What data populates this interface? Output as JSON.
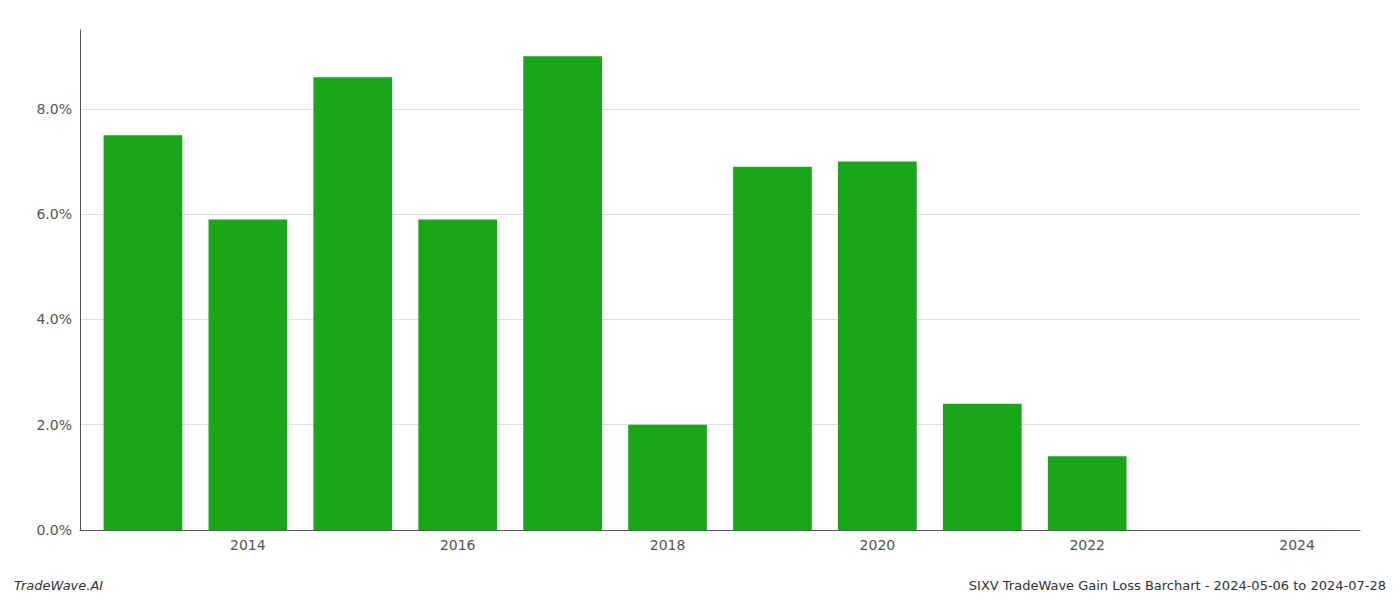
{
  "chart_data": {
    "type": "bar",
    "x": [
      2013,
      2014,
      2015,
      2016,
      2017,
      2018,
      2019,
      2020,
      2021,
      2022,
      2023
    ],
    "values": [
      0.075,
      0.059,
      0.086,
      0.059,
      0.09,
      0.02,
      0.069,
      0.07,
      0.024,
      0.014,
      0.0
    ],
    "color": "#1aa619",
    "xlim": [
      2012.4,
      2024.6
    ],
    "xticks": [
      2014,
      2016,
      2018,
      2020,
      2022,
      2024
    ],
    "ylim": [
      0,
      0.095
    ],
    "yticks": [
      {
        "value": 0.0,
        "label": "0.0%"
      },
      {
        "value": 0.02,
        "label": "2.0%"
      },
      {
        "value": 0.04,
        "label": "4.0%"
      },
      {
        "value": 0.06,
        "label": "6.0%"
      },
      {
        "value": 0.08,
        "label": "8.0%"
      }
    ],
    "grid": true,
    "annotations": [
      "TradeWave.AI",
      "SIXV TradeWave Gain Loss Barchart - 2024-05-06 to 2024-07-28"
    ]
  }
}
